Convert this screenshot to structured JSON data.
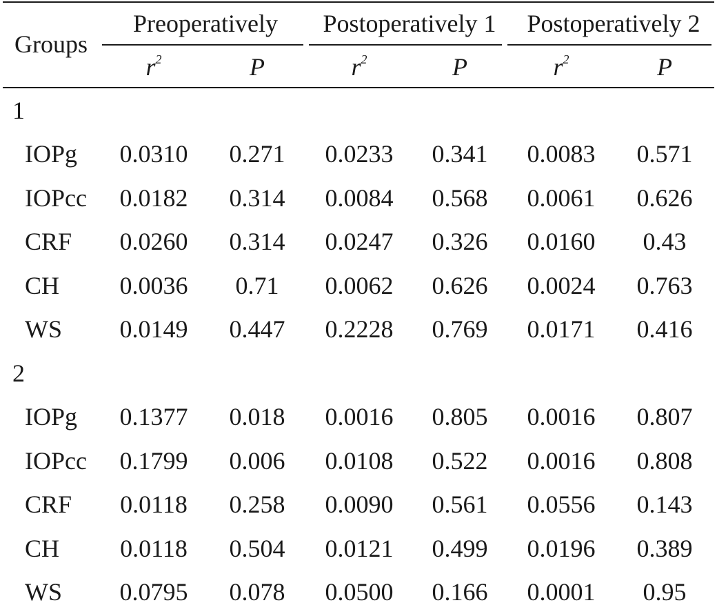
{
  "header": {
    "groups_label": "Groups",
    "periods": [
      "Preoperatively",
      "Postoperatively 1",
      "Postoperatively 2"
    ],
    "sub_r": "r",
    "sub_r_sup": "2",
    "sub_p": "P"
  },
  "groups": [
    {
      "label": "1",
      "rows": [
        {
          "name": "IOPg",
          "values": [
            "0.0310",
            "0.271",
            "0.0233",
            "0.341",
            "0.0083",
            "0.571"
          ]
        },
        {
          "name": "IOPcc",
          "values": [
            "0.0182",
            "0.314",
            "0.0084",
            "0.568",
            "0.0061",
            "0.626"
          ]
        },
        {
          "name": "CRF",
          "values": [
            "0.0260",
            "0.314",
            "0.0247",
            "0.326",
            "0.0160",
            "0.43"
          ]
        },
        {
          "name": "CH",
          "values": [
            "0.0036",
            "0.71",
            "0.0062",
            "0.626",
            "0.0024",
            "0.763"
          ]
        },
        {
          "name": "WS",
          "values": [
            "0.0149",
            "0.447",
            "0.2228",
            "0.769",
            "0.0171",
            "0.416"
          ]
        }
      ]
    },
    {
      "label": "2",
      "rows": [
        {
          "name": "IOPg",
          "values": [
            "0.1377",
            "0.018",
            "0.0016",
            "0.805",
            "0.0016",
            "0.807"
          ]
        },
        {
          "name": "IOPcc",
          "values": [
            "0.1799",
            "0.006",
            "0.0108",
            "0.522",
            "0.0016",
            "0.808"
          ]
        },
        {
          "name": "CRF",
          "values": [
            "0.0118",
            "0.258",
            "0.0090",
            "0.561",
            "0.0556",
            "0.143"
          ]
        },
        {
          "name": "CH",
          "values": [
            "0.0118",
            "0.504",
            "0.0121",
            "0.499",
            "0.0196",
            "0.389"
          ]
        },
        {
          "name": "WS",
          "values": [
            "0.0795",
            "0.078",
            "0.0500",
            "0.166",
            "0.0001",
            "0.95"
          ]
        }
      ]
    }
  ]
}
